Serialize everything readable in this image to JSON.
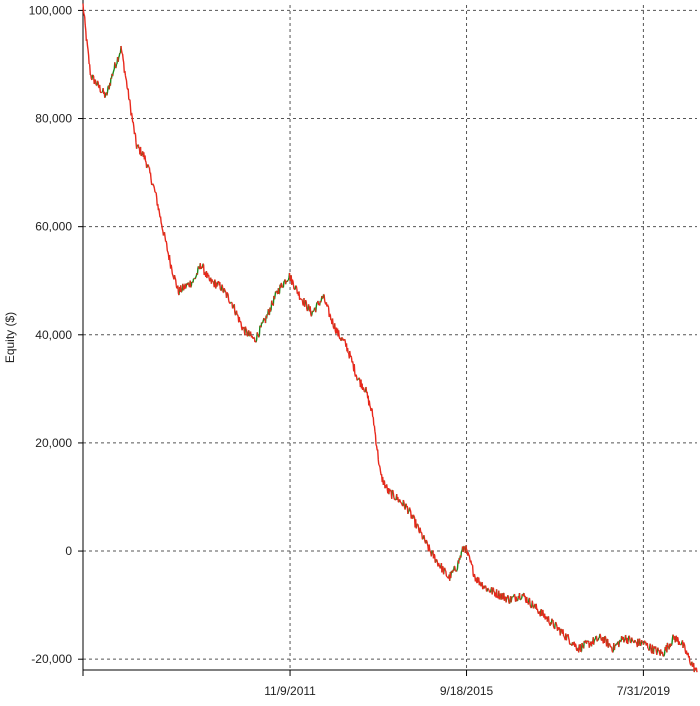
{
  "chart_data": {
    "type": "line",
    "title": "",
    "xlabel": "",
    "ylabel": "Equity ($)",
    "ylim": [
      -22000,
      101000
    ],
    "yticks": [
      {
        "value": 100000,
        "label": "100,000"
      },
      {
        "value": 80000,
        "label": "80,000"
      },
      {
        "value": 60000,
        "label": "60,000"
      },
      {
        "value": 40000,
        "label": "40,000"
      },
      {
        "value": 20000,
        "label": "20,000"
      },
      {
        "value": 0,
        "label": "0"
      },
      {
        "value": -20000,
        "label": "-20,000"
      }
    ],
    "xticks": [
      "11/9/2011",
      "9/18/2015",
      "7/31/2019"
    ],
    "x_range": [
      "5/1/2007",
      "10/1/2020"
    ],
    "grid": true,
    "colors": {
      "up": "#1a8a1a",
      "down": "#e8281c",
      "grid": "#555555",
      "axis": "#000000"
    },
    "series": [
      {
        "x": [
          "5/1/2007",
          "6/1/2007",
          "7/1/2007",
          "9/1/2007",
          "11/1/2007",
          "1/1/2008",
          "3/1/2008",
          "5/1/2008",
          "7/1/2008",
          "9/1/2008",
          "10/1/2008",
          "12/1/2008",
          "2/1/2009",
          "4/1/2009",
          "6/1/2009",
          "8/1/2009",
          "10/1/2009",
          "12/1/2009",
          "2/1/2010",
          "5/1/2010",
          "8/1/2010",
          "11/1/2010",
          "2/1/2011",
          "5/1/2011",
          "8/1/2011",
          "11/1/2011",
          "2/1/2012",
          "5/1/2012",
          "8/1/2012",
          "10/1/2012",
          "12/1/2012",
          "2/1/2013",
          "5/1/2013",
          "7/1/2013",
          "9/1/2013",
          "11/1/2013",
          "1/1/2014",
          "3/1/2014",
          "6/1/2014",
          "9/1/2014",
          "12/1/2014",
          "3/1/2015",
          "5/1/2015",
          "7/1/2015",
          "9/1/2015",
          "12/1/2015",
          "3/1/2016",
          "6/1/2016",
          "9/1/2016",
          "12/1/2016",
          "3/1/2017",
          "6/1/2017",
          "9/1/2017",
          "12/1/2017",
          "3/1/2018",
          "6/1/2018",
          "9/1/2018",
          "12/1/2018",
          "3/1/2019",
          "6/1/2019",
          "7/31/2019",
          "10/1/2019",
          "1/1/2020",
          "4/1/2020",
          "6/1/2020",
          "8/1/2020",
          "10/1/2020"
        ],
        "values": [
          101000,
          94000,
          88000,
          86000,
          84000,
          89000,
          93000,
          84000,
          75000,
          73000,
          71000,
          66000,
          59000,
          53000,
          48000,
          49000,
          50000,
          53000,
          50000,
          49000,
          46000,
          41000,
          39000,
          43000,
          48000,
          51000,
          47000,
          44000,
          47000,
          43000,
          40000,
          38000,
          32000,
          30000,
          25000,
          14000,
          11000,
          10000,
          8000,
          4000,
          0,
          -3000,
          -5000,
          -3000,
          1000,
          -5000,
          -7000,
          -8000,
          -9000,
          -8000,
          -10000,
          -12000,
          -14000,
          -16000,
          -18000,
          -17000,
          -16000,
          -18000,
          -16000,
          -17000,
          -17000,
          -18000,
          -19000,
          -16000,
          -17000,
          -20000,
          -22500
        ]
      }
    ]
  }
}
